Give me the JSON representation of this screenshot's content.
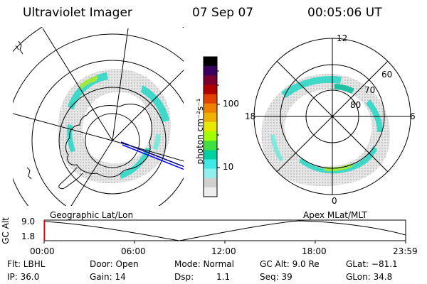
{
  "header": {
    "instrument": "Ultraviolet Imager",
    "date": "07 Sep 07",
    "time": "00:05:06 UT"
  },
  "colorbar": {
    "unit_label": "photon cm⁻²s⁻¹",
    "ticks": [
      "100",
      "10"
    ],
    "scale": "log",
    "colors": [
      "#000000",
      "#3a0060",
      "#7a0030",
      "#b00000",
      "#e04000",
      "#f08000",
      "#f0b000",
      "#e8e800",
      "#a0ff00",
      "#40e040",
      "#00d0a0",
      "#40e8e8",
      "#90f0f0",
      "#d0d0d0",
      "#eeeeee"
    ]
  },
  "left_map": {
    "caption": "Geographic Lat/Lon"
  },
  "right_map": {
    "caption": "Apex MLat/MLT",
    "mlt_labels": {
      "top": "12",
      "bottom": "0",
      "left": "18",
      "right": "6"
    },
    "lat_labels": [
      "60",
      "70",
      "80"
    ]
  },
  "altitude_plot": {
    "ylabel": "GC Alt",
    "yticks": [
      "9.0",
      "1.8"
    ],
    "xticks": [
      "00:00",
      "06:00",
      "12:00",
      "18:00",
      "23:59"
    ],
    "marker_color": "#e00000"
  },
  "info": {
    "filter": "Flt: LBHL",
    "door": "Door: Open",
    "mode": "Mode: Normal",
    "gc_alt": "GC Alt: 9.0 Re",
    "glat": "GLat: −81.1",
    "ip": "IP: 36.0",
    "gain": "Gain: 14",
    "dsp_label": "Dsp:",
    "dsp_value": "1.1",
    "seq": "Seq: 39",
    "glon": "GLon:  34.8"
  }
}
